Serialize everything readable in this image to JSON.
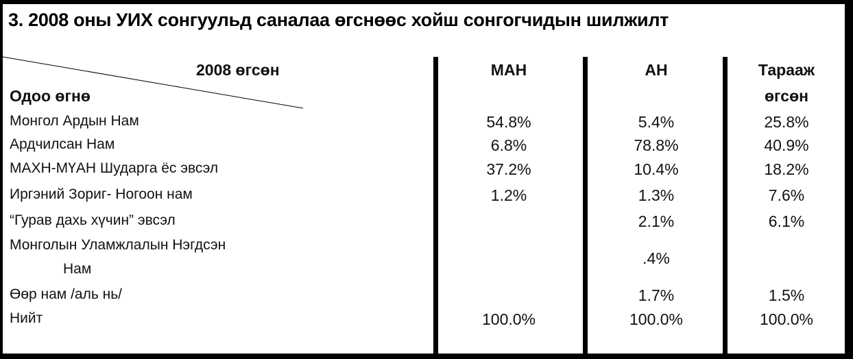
{
  "title": "3. 2008 оны УИХ сонгуульд саналаа өгснөөс хойш сонгогчидын шилжилт",
  "corner": {
    "top_label": "2008 өгсөн",
    "side_label": "Одоо өгнө"
  },
  "columns": [
    "МАН",
    "АН",
    "Тарааж",
    "өгсөн"
  ],
  "rows": [
    {
      "label": "Монгол Ардын Нам",
      "values": [
        "54.8%",
        "5.4%",
        "25.8%"
      ]
    },
    {
      "label": "Ардчилсан Нам",
      "values": [
        "6.8%",
        "78.8%",
        "40.9%"
      ]
    },
    {
      "label": "МАХН-МҮАН Шударга ёс эвсэл",
      "values": [
        "37.2%",
        "10.4%",
        "18.2%"
      ]
    },
    {
      "label": "Иргэний Зориг- Ногоон нам",
      "values": [
        "1.2%",
        "1.3%",
        "7.6%"
      ]
    },
    {
      "label": " “Гурав дахь хүчин” эвсэл",
      "values": [
        "",
        "2.1%",
        "6.1%"
      ]
    },
    {
      "label": "Монголын Уламжлалын Нэгдсэн",
      "label2": "Нам",
      "values": [
        "",
        ".4%",
        ""
      ]
    },
    {
      "label": "Өөр нам /аль нь/",
      "values": [
        "",
        "1.7%",
        "1.5%"
      ]
    },
    {
      "label": "Нийт",
      "values": [
        "100.0%",
        "100.0%",
        "100.0%"
      ]
    }
  ]
}
